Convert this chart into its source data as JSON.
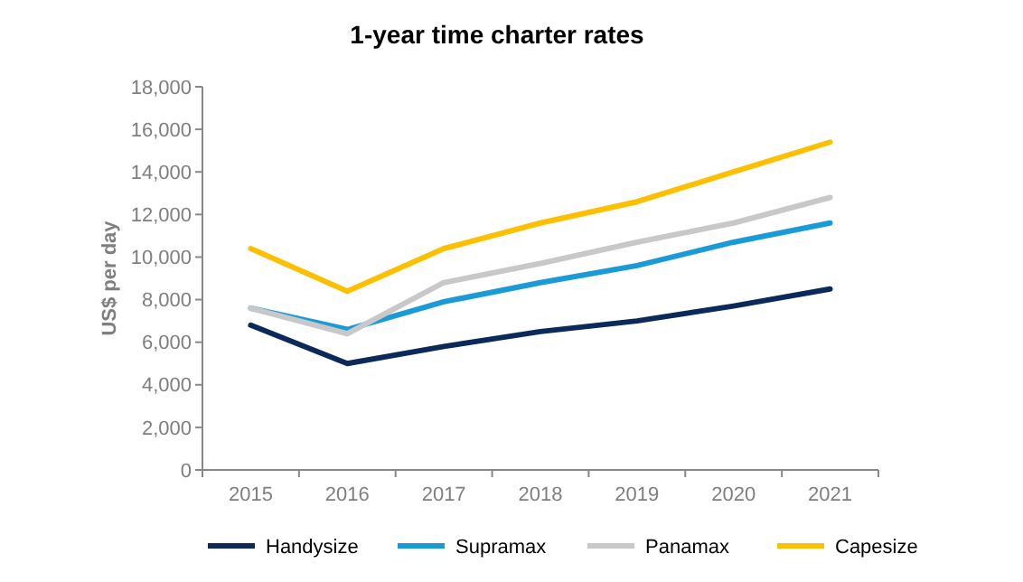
{
  "chart_data": {
    "type": "line",
    "title": "1-year time charter rates",
    "ylabel": "US$ per day",
    "categories": [
      "2015",
      "2016",
      "2017",
      "2018",
      "2019",
      "2020",
      "2021"
    ],
    "series": [
      {
        "name": "Handysize",
        "color": "#0b2a59",
        "values": [
          6800,
          5000,
          5800,
          6500,
          7000,
          7700,
          8500
        ]
      },
      {
        "name": "Supramax",
        "color": "#1a9ad6",
        "values": [
          7600,
          6600,
          7900,
          8800,
          9600,
          10700,
          11600
        ]
      },
      {
        "name": "Panamax",
        "color": "#c8c8c8",
        "values": [
          7600,
          6400,
          8800,
          9700,
          10700,
          11600,
          12800
        ]
      },
      {
        "name": "Capesize",
        "color": "#fcc000",
        "values": [
          10400,
          8400,
          10400,
          11600,
          12600,
          14000,
          15400
        ]
      }
    ],
    "ylim": [
      0,
      18000
    ],
    "yticks": [
      0,
      {
        "value": 2000,
        "label": "2,000"
      },
      {
        "value": 4000,
        "label": "4,000"
      },
      {
        "value": 6000,
        "label": "6,000"
      },
      {
        "value": 8000,
        "label": "8,000"
      },
      {
        "value": 10000,
        "label": "10,000"
      },
      {
        "value": 12000,
        "label": "12,000"
      },
      {
        "value": 14000,
        "label": "14,000"
      },
      {
        "value": 16000,
        "label": "16,000"
      },
      {
        "value": 18000,
        "label": "18,000"
      }
    ],
    "grid": false,
    "legend": "bottom",
    "marker": "none",
    "line_style": "solid"
  }
}
